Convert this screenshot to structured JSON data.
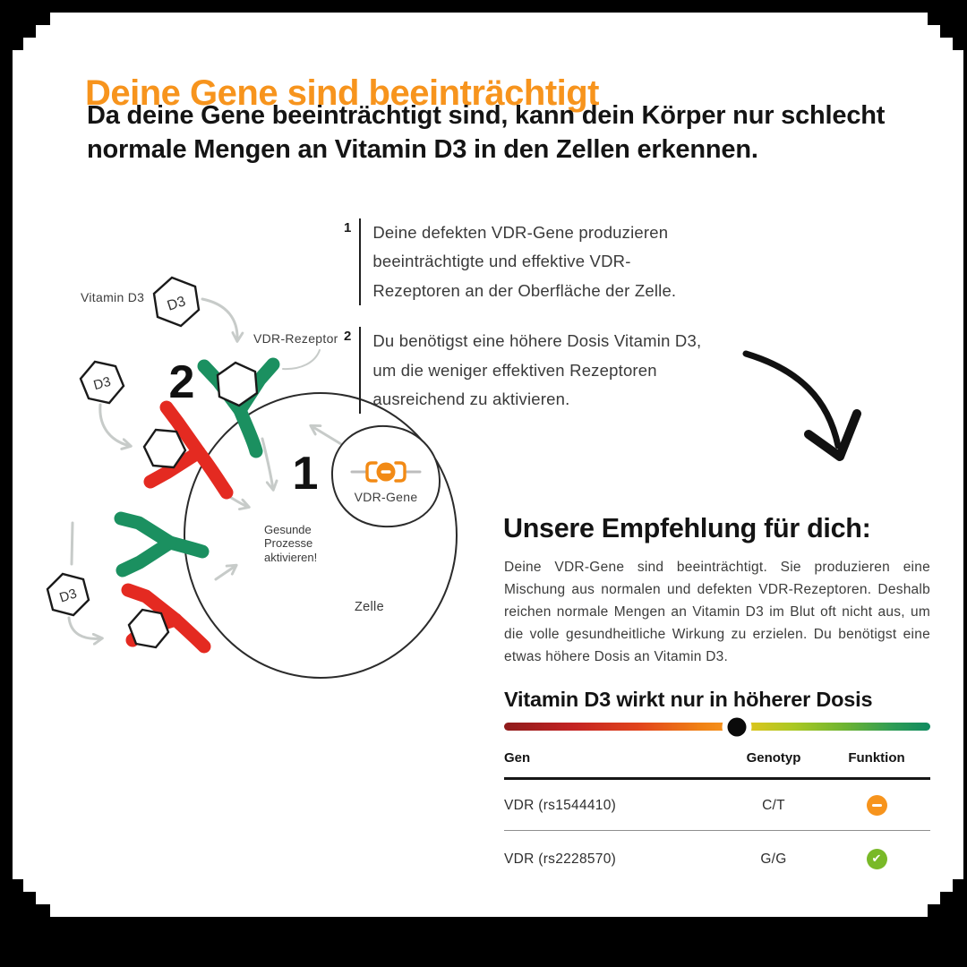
{
  "card": {
    "title": "Deine Gene sind beeinträchtigt",
    "subtitle": "Da deine Gene beeinträchtigt sind, kann dein Körper nur schlecht normale Mengen an Vitamin D3 in den Zellen erkennen."
  },
  "diagram": {
    "hex_label": "D3",
    "labels": {
      "vitamin_d3": "Vitamin D3",
      "vdr_receptor": "VDR-Rezeptor",
      "vdr_gene": "VDR-Gene",
      "healthy_processes": "Gesunde Prozesse aktivieren!",
      "cell": "Zelle",
      "step_1": "1",
      "step_2": "2"
    }
  },
  "points": [
    {
      "number": "1",
      "text": "Deine defekten VDR-Gene produzieren beeinträchtigte und effektive VDR-Rezeptoren an der Oberfläche der Zelle."
    },
    {
      "number": "2",
      "text": "Du benötigst eine höhere Dosis Vitamin D3, um die weniger effektiven Rezeptoren ausreichend zu aktivieren."
    }
  ],
  "recommendation": {
    "heading": "Unsere Empfehlung für dich:",
    "body": "Deine VDR-Gene sind beeinträchtigt. Sie produzieren eine Mischung aus normalen und defekten VDR-Rezeptoren. Deshalb reichen normale Mengen an Vitamin D3 im Blut oft nicht aus, um die volle gesundheitliche Wirkung zu erzielen. Du benötigst eine etwas höhere Dosis an Vitamin D3.",
    "subheading": "Vitamin D3 wirkt nur in höherer Dosis"
  },
  "dose_scale": {
    "marker_position_percent": 54.7,
    "marker_color": "#0A0A0A",
    "gradient_colors": [
      "#8E1C1C",
      "#C32222",
      "#E2451C",
      "#F7941D",
      "#D9C51E",
      "#AAC823",
      "#6DB432",
      "#2F9D55",
      "#0F8A60"
    ]
  },
  "table": {
    "headers": [
      "Gen",
      "Genotyp",
      "Funktion"
    ],
    "rows": [
      {
        "gen": "VDR (rs1544410)",
        "genotyp": "C/T",
        "funktion_icon": "minus-icon",
        "funktion_color": "#F7941D"
      },
      {
        "gen": "VDR (rs2228570)",
        "genotyp": "G/G",
        "funktion_icon": "check-icon",
        "funktion_color": "#79B928"
      }
    ]
  },
  "colors": {
    "accent_orange": "#F7941D",
    "receptor_green": "#1B9060",
    "receptor_red": "#E42A21",
    "check_green": "#79B928",
    "arrow_gray": "#C7CBC9",
    "background": "#000000",
    "card": "#FFFFFF"
  }
}
